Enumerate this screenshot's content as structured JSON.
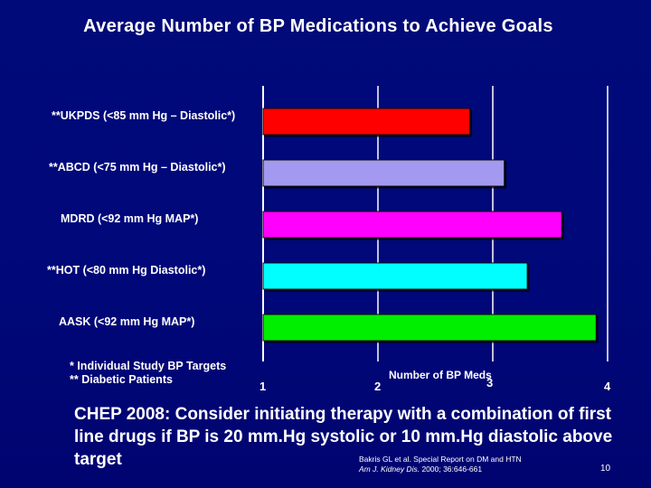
{
  "slide": {
    "title": "Average Number of BP Medications to Achieve Goals",
    "footnotes": [
      "* Individual Study BP Targets",
      "** Diabetic Patients"
    ],
    "conclusion": "CHEP 2008: Consider initiating therapy with a combination of first line drugs if BP is 20 mm.Hg systolic or 10 mm.Hg diastolic above target",
    "reference": {
      "line1": "Bakris GL et al. Special Report on DM and HTN",
      "line2_journal": "Am J. Kidney Dis.",
      "line2_rest": " 2000; 36:646-661"
    },
    "page_number": "10"
  },
  "chart_data": {
    "type": "bar",
    "orientation": "horizontal",
    "title": "Average Number of BP Medications to Achieve Goals",
    "xlabel": "Number of BP Meds",
    "ylabel": "",
    "xlim": [
      1,
      4
    ],
    "xticks": [
      1,
      2,
      3,
      4
    ],
    "grid": true,
    "categories": [
      "**UKPDS (<85 mm Hg – Diastolic*)",
      "**ABCD (<75 mm Hg – Diastolic*)",
      "MDRD (<92 mm Hg MAP*)",
      "**HOT (<80 mm Hg Diastolic*)",
      "AASK (<92 mm Hg MAP*)"
    ],
    "values": [
      2.8,
      3.1,
      3.6,
      3.3,
      3.9
    ],
    "colors": [
      "#ff0000",
      "#a399f0",
      "#ff00ff",
      "#00ffff",
      "#00ee00"
    ]
  }
}
